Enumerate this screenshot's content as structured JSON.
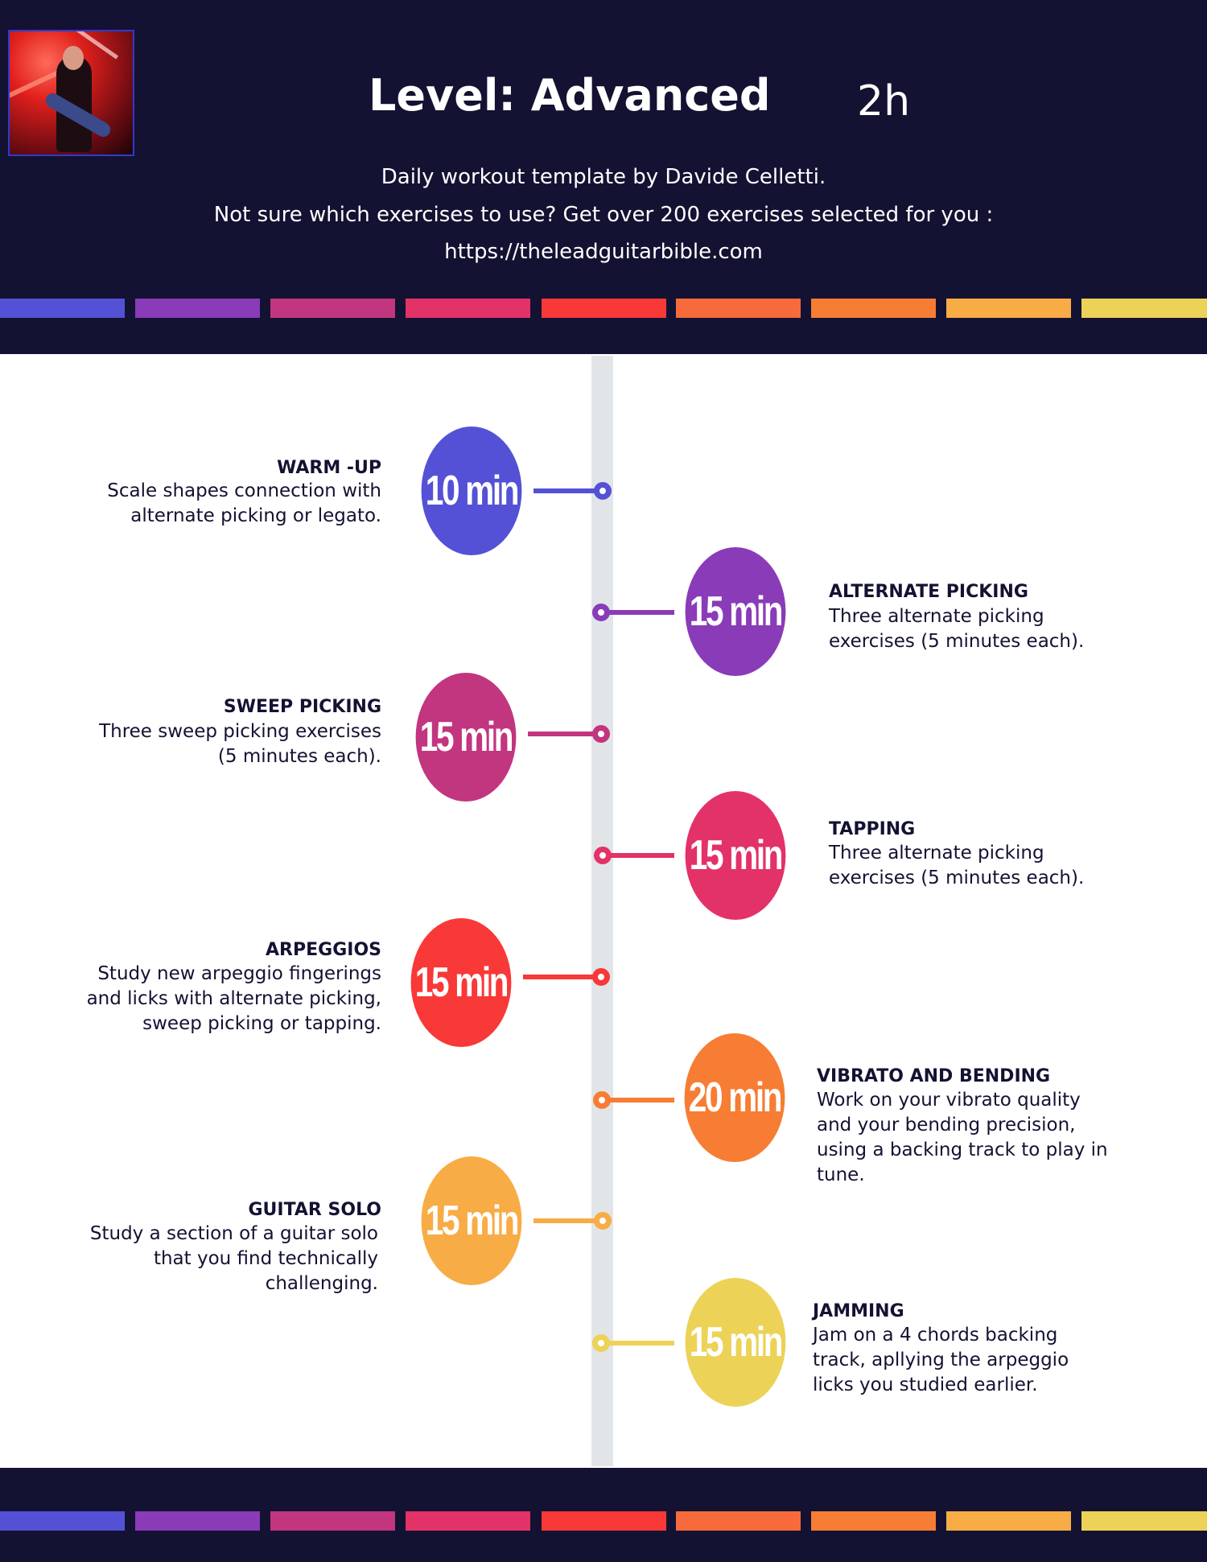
{
  "header": {
    "title": "Level: Advanced",
    "duration": "2h",
    "subtitle_lines": [
      "Daily workout template by Davide Celletti.",
      "Not sure which exercises to use? Get over 200 exercises selected for you :",
      "https://theleadguitarbible.com"
    ]
  },
  "colors": {
    "background_dark": "#131232",
    "timeline": "#e2e5e8",
    "bars": [
      "#5451d6",
      "#8a3bb8",
      "#c2357f",
      "#e33268",
      "#f93838",
      "#f66a3c",
      "#f67d33",
      "#f8ac45",
      "#ecd257"
    ]
  },
  "sessions": [
    {
      "time": "10 min",
      "title": "WARM -UP",
      "description": "Scale shapes connection with\nalternate picking or legato.",
      "color": "#5451d6",
      "side": "left"
    },
    {
      "time": "15 min",
      "title": "ALTERNATE PICKING",
      "description": "Three alternate picking\nexercises (5 minutes each).",
      "color": "#8a3bb8",
      "side": "right"
    },
    {
      "time": "15 min",
      "title": "SWEEP PICKING",
      "description": "Three sweep picking exercises\n(5 minutes each).",
      "color": "#c2357f",
      "side": "left"
    },
    {
      "time": "15 min",
      "title": "TAPPING",
      "description": "Three alternate picking\nexercises (5 minutes each).",
      "color": "#e33268",
      "side": "right"
    },
    {
      "time": "15 min",
      "title": "ARPEGGIOS",
      "description": "Study new arpeggio fingerings\nand licks with alternate picking,\nsweep picking or tapping.",
      "color": "#f93838",
      "side": "left"
    },
    {
      "time": "20 min",
      "title": "VIBRATO AND BENDING",
      "description": "Work on your vibrato quality\nand your bending precision,\nusing a backing track to play in\ntune.",
      "color": "#f67d33",
      "side": "right"
    },
    {
      "time": "15 min",
      "title": "GUITAR SOLO",
      "description": "Study a section of a guitar solo\nthat you find technically\nchallenging.",
      "color": "#f8ac45",
      "side": "left"
    },
    {
      "time": "15 min",
      "title": "JAMMING",
      "description": "Jam on a 4 chords backing\ntrack, apllying the arpeggio\nlicks you studied earlier.",
      "color": "#ecd257",
      "side": "right"
    }
  ]
}
